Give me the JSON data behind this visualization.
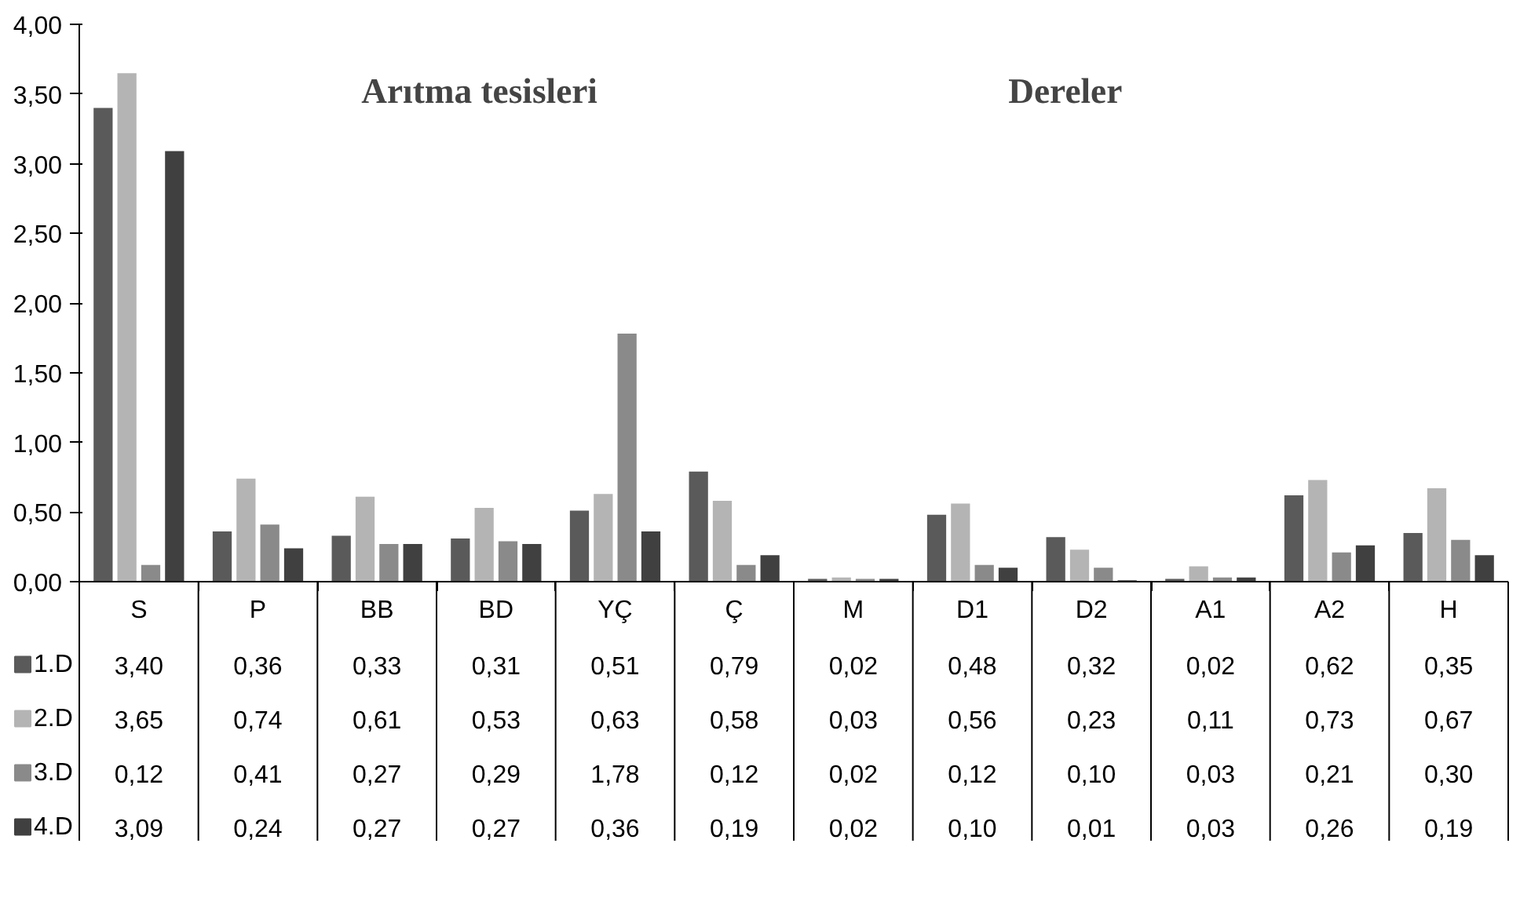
{
  "chart_data": {
    "type": "bar",
    "categories": [
      "S",
      "P",
      "BB",
      "BD",
      "YÇ",
      "Ç",
      "M",
      "D1",
      "D2",
      "A1",
      "A2",
      "H"
    ],
    "series": [
      {
        "name": "1.D",
        "color": "#5a5a5a",
        "values": [
          3.4,
          0.36,
          0.33,
          0.31,
          0.51,
          0.79,
          0.02,
          0.48,
          0.32,
          0.02,
          0.62,
          0.35
        ],
        "value_labels": [
          "3,40",
          "0,36",
          "0,33",
          "0,31",
          "0,51",
          "0,79",
          "0,02",
          "0,48",
          "0,32",
          "0,02",
          "0,62",
          "0,35"
        ]
      },
      {
        "name": "2.D",
        "color": "#b4b4b4",
        "values": [
          3.65,
          0.74,
          0.61,
          0.53,
          0.63,
          0.58,
          0.03,
          0.56,
          0.23,
          0.11,
          0.73,
          0.67
        ],
        "value_labels": [
          "3,65",
          "0,74",
          "0,61",
          "0,53",
          "0,63",
          "0,58",
          "0,03",
          "0,56",
          "0,23",
          "0,11",
          "0,73",
          "0,67"
        ]
      },
      {
        "name": "3.D",
        "color": "#8a8a8a",
        "values": [
          0.12,
          0.41,
          0.27,
          0.29,
          1.78,
          0.12,
          0.02,
          0.12,
          0.1,
          0.03,
          0.21,
          0.3
        ],
        "value_labels": [
          "0,12",
          "0,41",
          "0,27",
          "0,29",
          "1,78",
          "0,12",
          "0,02",
          "0,12",
          "0,10",
          "0,03",
          "0,21",
          "0,30"
        ]
      },
      {
        "name": "4.D",
        "color": "#404040",
        "values": [
          3.09,
          0.24,
          0.27,
          0.27,
          0.36,
          0.19,
          0.02,
          0.1,
          0.01,
          0.03,
          0.26,
          0.19
        ],
        "value_labels": [
          "3,09",
          "0,24",
          "0,27",
          "0,27",
          "0,36",
          "0,19",
          "0,02",
          "0,10",
          "0,01",
          "0,03",
          "0,26",
          "0,19"
        ]
      }
    ],
    "ylim": [
      0,
      4
    ],
    "yticks": [
      {
        "value": 0,
        "label": "0,00"
      },
      {
        "value": 0.5,
        "label": "0,50"
      },
      {
        "value": 1,
        "label": "1,00"
      },
      {
        "value": 1.5,
        "label": "1,50"
      },
      {
        "value": 2,
        "label": "2,00"
      },
      {
        "value": 2.5,
        "label": "2,50"
      },
      {
        "value": 3,
        "label": "3,00"
      },
      {
        "value": 3.5,
        "label": "3,50"
      },
      {
        "value": 4,
        "label": "4,00"
      }
    ],
    "annotations": [
      "Arıtma tesisleri",
      "Dereler"
    ],
    "grid": false,
    "legend": "bottom"
  }
}
